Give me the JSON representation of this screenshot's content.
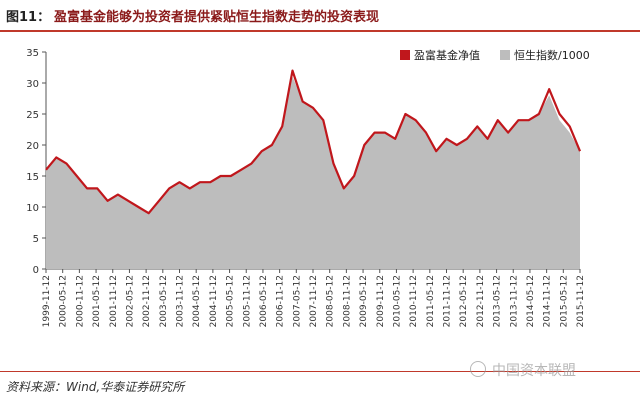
{
  "figure": {
    "number": "图11：",
    "title": "盈富基金能够为投资者提供紧贴恒生指数走势的投资表现"
  },
  "source": "资料来源：Wind,华泰证券研究所",
  "watermark": "中国资本联盟",
  "colors": {
    "nav": "#c0171c",
    "hsi_fill": "#bdbdbd",
    "accent": "#c0392b"
  },
  "chart_data": {
    "type": "area",
    "title": "盈富基金能够为投资者提供紧贴恒生指数走势的投资表现",
    "xlabel": "",
    "ylabel": "",
    "ylim": [
      0,
      35
    ],
    "yticks": [
      0,
      5,
      10,
      15,
      20,
      25,
      30,
      35
    ],
    "xticks": [
      "1999-11-12",
      "2000-05-12",
      "2000-11-12",
      "2001-05-12",
      "2001-11-12",
      "2002-05-12",
      "2002-11-12",
      "2003-05-12",
      "2003-11-12",
      "2004-05-12",
      "2004-11-12",
      "2005-05-12",
      "2005-11-12",
      "2006-05-12",
      "2006-11-12",
      "2007-05-12",
      "2007-11-12",
      "2008-05-12",
      "2008-11-12",
      "2009-05-12",
      "2009-11-12",
      "2010-05-12",
      "2010-11-12",
      "2011-05-12",
      "2011-11-12",
      "2012-05-12",
      "2012-11-12",
      "2013-05-12",
      "2013-11-12",
      "2014-05-12",
      "2014-11-12",
      "2015-05-12",
      "2015-11-12"
    ],
    "legend_position": "top-right",
    "x": [
      "1999-11",
      "2000-03",
      "2000-07",
      "2000-11",
      "2001-03",
      "2001-07",
      "2001-11",
      "2002-03",
      "2002-07",
      "2002-11",
      "2003-03",
      "2003-07",
      "2003-11",
      "2004-03",
      "2004-07",
      "2004-11",
      "2005-03",
      "2005-07",
      "2005-11",
      "2006-03",
      "2006-07",
      "2006-11",
      "2007-03",
      "2007-07",
      "2007-10",
      "2007-12",
      "2008-03",
      "2008-06",
      "2008-09",
      "2008-11",
      "2009-03",
      "2009-07",
      "2009-11",
      "2010-03",
      "2010-07",
      "2010-11",
      "2011-03",
      "2011-07",
      "2011-11",
      "2012-03",
      "2012-07",
      "2012-11",
      "2013-03",
      "2013-07",
      "2013-11",
      "2014-03",
      "2014-07",
      "2014-11",
      "2015-03",
      "2015-05",
      "2015-08",
      "2015-11",
      "2016-01"
    ],
    "series": [
      {
        "name": "盈富基金净值",
        "values": [
          16,
          18,
          17,
          15,
          13,
          13,
          11,
          12,
          11,
          10,
          9,
          11,
          13,
          14,
          13,
          14,
          14,
          15,
          15,
          16,
          17,
          19,
          20,
          23,
          32,
          27,
          26,
          24,
          17,
          13,
          15,
          20,
          22,
          22,
          21,
          25,
          24,
          22,
          19,
          21,
          20,
          21,
          23,
          21,
          24,
          22,
          24,
          24,
          25,
          29,
          25,
          23,
          19
        ]
      },
      {
        "name": "恒生指数/1000",
        "values": [
          16,
          18,
          17,
          15,
          13,
          13,
          11,
          12,
          11,
          10,
          9,
          11,
          13,
          14,
          13,
          14,
          14,
          15,
          15,
          16,
          17,
          19,
          20,
          23,
          31,
          27,
          26,
          24,
          17,
          13,
          15,
          20,
          22,
          22,
          21,
          25,
          24,
          22,
          19,
          21,
          20,
          21,
          23,
          21,
          24,
          22,
          24,
          24,
          25,
          28,
          24,
          22,
          19
        ]
      }
    ]
  }
}
